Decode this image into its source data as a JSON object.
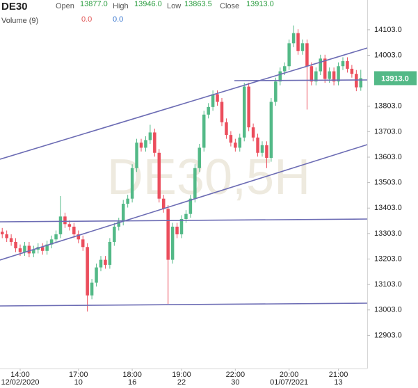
{
  "chart_data": {
    "type": "candlestick",
    "symbol": "DE30",
    "watermark": "DE30,5H",
    "header": {
      "open_label": "Open",
      "open": {
        "value": 13877,
        "label": "13877.0"
      },
      "high_label": "High",
      "high": {
        "value": 13946,
        "label": "13946.0"
      },
      "low_label": "Low",
      "low": {
        "value": 13863.5,
        "label": "13863.5"
      },
      "close_label": "Close",
      "close": {
        "value": 13913,
        "label": "13913.0"
      },
      "volume_label": "Volume (9)",
      "volume_values": [
        {
          "value": 0,
          "label": "0.0"
        },
        {
          "value": 0,
          "label": "0.0"
        }
      ]
    },
    "current_price": {
      "value": 13913,
      "label": "13913.0"
    },
    "up_color": "#53b987",
    "down_color": "#eb4d5c",
    "ylim": [
      12773,
      14220
    ],
    "yticks": [
      {
        "value": 12903,
        "label": "12903.0"
      },
      {
        "value": 13003,
        "label": "13003.0"
      },
      {
        "value": 13103,
        "label": "13103.0"
      },
      {
        "value": 13203,
        "label": "13203.0"
      },
      {
        "value": 13303,
        "label": "13303.0"
      },
      {
        "value": 13403,
        "label": "13403.0"
      },
      {
        "value": 13503,
        "label": "13503.0"
      },
      {
        "value": 13603,
        "label": "13603.0"
      },
      {
        "value": 13703,
        "label": "13703.0"
      },
      {
        "value": 13803,
        "label": "13803.0"
      },
      {
        "value": 14003,
        "label": "14003.0"
      },
      {
        "value": 14103,
        "label": "14103.0"
      }
    ],
    "categories": [
      null,
      null,
      null,
      null,
      "14:00",
      null,
      null,
      null,
      null,
      null,
      null,
      null,
      null,
      null,
      null,
      null,
      null,
      "17:00",
      null,
      null,
      null,
      null,
      null,
      null,
      null,
      null,
      null,
      null,
      null,
      "18:00",
      null,
      null,
      null,
      null,
      null,
      null,
      null,
      null,
      null,
      null,
      "19:00",
      null,
      null,
      null,
      null,
      null,
      null,
      null,
      null,
      null,
      null,
      null,
      "22:00",
      null,
      null,
      null,
      null,
      null,
      null,
      null,
      null,
      null,
      null,
      null,
      "20:00",
      null,
      null,
      null,
      null,
      null,
      null,
      null,
      null,
      null,
      null,
      "21:00",
      null,
      null,
      null,
      null,
      null
    ],
    "date_labels": [
      null,
      null,
      null,
      null,
      "12/02/2020",
      null,
      null,
      null,
      null,
      null,
      null,
      null,
      null,
      null,
      null,
      null,
      null,
      "10",
      null,
      null,
      null,
      null,
      null,
      null,
      null,
      null,
      null,
      null,
      null,
      "16",
      null,
      null,
      null,
      null,
      null,
      null,
      null,
      null,
      null,
      null,
      "22",
      null,
      null,
      null,
      null,
      null,
      null,
      null,
      null,
      null,
      null,
      null,
      "30",
      null,
      null,
      null,
      null,
      null,
      null,
      null,
      null,
      null,
      null,
      null,
      "01/07/2021",
      null,
      null,
      null,
      null,
      null,
      null,
      null,
      null,
      null,
      null,
      "13",
      null,
      null,
      null,
      null,
      null
    ],
    "open": [
      13310,
      13300,
      13285,
      13270,
      13245,
      13230,
      13255,
      13225,
      13240,
      13250,
      13235,
      13260,
      13280,
      13300,
      13370,
      13340,
      13330,
      13300,
      13280,
      13250,
      13060,
      13110,
      13170,
      13200,
      13180,
      13270,
      13330,
      13350,
      13420,
      13440,
      13560,
      13660,
      13640,
      13670,
      13700,
      13620,
      13440,
      13400,
      13200,
      13330,
      13300,
      13360,
      13380,
      13440,
      13560,
      13640,
      13770,
      13800,
      13850,
      13820,
      13740,
      13690,
      13660,
      13640,
      13680,
      13880,
      13720,
      13680,
      13620,
      13650,
      13600,
      13820,
      13900,
      13940,
      13960,
      14050,
      14090,
      14020,
      14050,
      13960,
      13900,
      13940,
      13990,
      13910,
      13940,
      13900,
      13960,
      13980,
      13950,
      13930,
      13877
    ],
    "high": [
      13325,
      13315,
      13300,
      13285,
      13260,
      13270,
      13270,
      13255,
      13265,
      13265,
      13275,
      13295,
      13315,
      13450,
      13385,
      13355,
      13345,
      13315,
      13295,
      13265,
      13125,
      13185,
      13215,
      13215,
      13285,
      13345,
      13365,
      13435,
      13455,
      13575,
      13675,
      13675,
      13685,
      13730,
      13715,
      13635,
      13455,
      13415,
      13345,
      13345,
      13375,
      13395,
      13455,
      13575,
      13655,
      13785,
      13815,
      13865,
      13865,
      13835,
      13755,
      13705,
      13675,
      13695,
      13895,
      13895,
      13735,
      13695,
      13665,
      13665,
      13835,
      13915,
      13955,
      13975,
      14065,
      14120,
      14105,
      14065,
      14065,
      13975,
      13955,
      14005,
      14005,
      13955,
      13955,
      13975,
      13995,
      13995,
      13965,
      13945,
      13946
    ],
    "low": [
      13285,
      13270,
      13255,
      13230,
      13215,
      13215,
      13210,
      13210,
      13225,
      13220,
      13220,
      13245,
      13265,
      13285,
      13325,
      13315,
      13285,
      13265,
      13235,
      12997,
      13045,
      13095,
      13155,
      13165,
      13165,
      13255,
      13315,
      13335,
      13405,
      13425,
      13545,
      13625,
      13625,
      13655,
      13605,
      13425,
      13385,
      13027,
      13185,
      13285,
      13285,
      13345,
      13365,
      13425,
      13545,
      13625,
      13755,
      13785,
      13805,
      13725,
      13675,
      13645,
      13625,
      13625,
      13665,
      13705,
      13665,
      13605,
      13605,
      13560,
      13585,
      13805,
      13885,
      13925,
      13945,
      14035,
      14005,
      14005,
      13790,
      13885,
      13885,
      13925,
      13895,
      13895,
      13885,
      13885,
      13945,
      13935,
      13915,
      13862,
      13863.5
    ],
    "close": [
      13300,
      13285,
      13270,
      13245,
      13230,
      13255,
      13225,
      13240,
      13250,
      13235,
      13260,
      13280,
      13300,
      13370,
      13340,
      13330,
      13300,
      13280,
      13250,
      13060,
      13110,
      13170,
      13200,
      13180,
      13270,
      13330,
      13350,
      13420,
      13440,
      13560,
      13660,
      13640,
      13670,
      13700,
      13620,
      13440,
      13400,
      13200,
      13330,
      13300,
      13360,
      13380,
      13440,
      13560,
      13640,
      13770,
      13800,
      13850,
      13820,
      13740,
      13690,
      13660,
      13640,
      13680,
      13880,
      13720,
      13680,
      13620,
      13650,
      13600,
      13820,
      13900,
      13940,
      13960,
      14050,
      14090,
      14020,
      14050,
      13960,
      13900,
      13940,
      13990,
      13910,
      13940,
      13900,
      13960,
      13980,
      13950,
      13930,
      13877,
      13913
    ]
  }
}
